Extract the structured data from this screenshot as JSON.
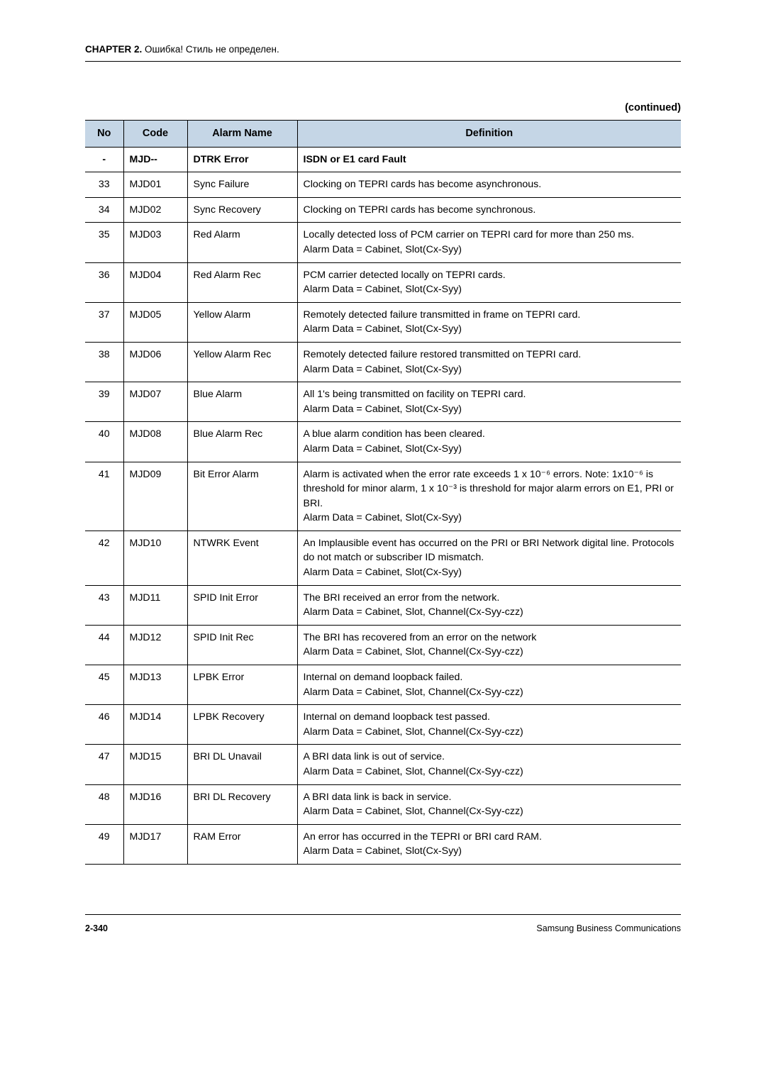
{
  "chapter": {
    "label": "CHAPTER 2.",
    "text": " Ошибка! Стиль не определен."
  },
  "continued": "(continued)",
  "table": {
    "headers": {
      "no": "No",
      "code": "Code",
      "alarm": "Alarm Name",
      "def": "Definition"
    },
    "headerRow": {
      "no": "-",
      "code": "MJD--",
      "alarm": "DTRK Error",
      "def": "ISDN or E1 card Fault"
    },
    "rows": [
      {
        "no": "33",
        "code": "MJD01",
        "alarm": "Sync Failure",
        "def": "Clocking on TEPRI cards has become asynchronous."
      },
      {
        "no": "34",
        "code": "MJD02",
        "alarm": "Sync Recovery",
        "def": "Clocking on TEPRI cards has become synchronous."
      },
      {
        "no": "35",
        "code": "MJD03",
        "alarm": "Red Alarm",
        "def": "Locally detected loss of PCM carrier on TEPRI card for more than 250 ms.\nAlarm Data = Cabinet, Slot(Cx-Syy)"
      },
      {
        "no": "36",
        "code": "MJD04",
        "alarm": "Red Alarm Rec",
        "def": "PCM carrier detected locally on TEPRI cards.\nAlarm Data = Cabinet, Slot(Cx-Syy)"
      },
      {
        "no": "37",
        "code": "MJD05",
        "alarm": "Yellow Alarm",
        "def": "Remotely detected failure transmitted in frame on TEPRI card.\nAlarm Data = Cabinet, Slot(Cx-Syy)"
      },
      {
        "no": "38",
        "code": "MJD06",
        "alarm": "Yellow Alarm Rec",
        "def": "Remotely detected failure restored transmitted on TEPRI card.\nAlarm Data = Cabinet, Slot(Cx-Syy)"
      },
      {
        "no": "39",
        "code": "MJD07",
        "alarm": "Blue Alarm",
        "def": "All 1's being transmitted on facility on TEPRI card.\nAlarm Data = Cabinet, Slot(Cx-Syy)"
      },
      {
        "no": "40",
        "code": "MJD08",
        "alarm": "Blue Alarm Rec",
        "def": "A blue alarm condition has been cleared.\nAlarm Data = Cabinet, Slot(Cx-Syy)"
      },
      {
        "no": "41",
        "code": "MJD09",
        "alarm": "Bit Error Alarm",
        "def": "Alarm is activated when the error rate exceeds 1 x 10⁻⁶ errors. Note: 1x10⁻⁶ is threshold for minor alarm, 1 x 10⁻³ is threshold for major alarm errors on E1, PRI or BRI.\nAlarm Data = Cabinet, Slot(Cx-Syy)"
      },
      {
        "no": "42",
        "code": "MJD10",
        "alarm": "NTWRK Event",
        "def": "An Implausible event has occurred on the PRI or BRI Network digital line. Protocols do not match or subscriber ID mismatch.\nAlarm Data = Cabinet, Slot(Cx-Syy)"
      },
      {
        "no": "43",
        "code": "MJD11",
        "alarm": "SPID Init Error",
        "def": "The BRI received an error from the network.\nAlarm Data = Cabinet, Slot, Channel(Cx-Syy-czz)"
      },
      {
        "no": "44",
        "code": "MJD12",
        "alarm": "SPID Init Rec",
        "def": "The BRI has recovered from an error on the network\nAlarm Data = Cabinet, Slot, Channel(Cx-Syy-czz)"
      },
      {
        "no": "45",
        "code": "MJD13",
        "alarm": "LPBK Error",
        "def": "Internal on demand loopback failed.\nAlarm Data = Cabinet, Slot, Channel(Cx-Syy-czz)"
      },
      {
        "no": "46",
        "code": "MJD14",
        "alarm": "LPBK Recovery",
        "def": "Internal on demand loopback test passed.\nAlarm Data = Cabinet, Slot, Channel(Cx-Syy-czz)"
      },
      {
        "no": "47",
        "code": "MJD15",
        "alarm": "BRI DL Unavail",
        "def": "A BRI data link is out of service.\nAlarm Data = Cabinet, Slot, Channel(Cx-Syy-czz)"
      },
      {
        "no": "48",
        "code": "MJD16",
        "alarm": "BRI DL Recovery",
        "def": "A BRI data link is back in service.\nAlarm Data = Cabinet, Slot, Channel(Cx-Syy-czz)"
      },
      {
        "no": "49",
        "code": "MJD17",
        "alarm": "RAM Error",
        "def": "An error has occurred in the TEPRI or BRI card RAM.\nAlarm Data = Cabinet, Slot(Cx-Syy)"
      }
    ]
  },
  "footer": {
    "page": "2-340",
    "company": "Samsung Business Communications"
  },
  "colors": {
    "header_bg": "#c5d6e6",
    "border": "#000000",
    "text": "#000000",
    "background": "#ffffff"
  }
}
